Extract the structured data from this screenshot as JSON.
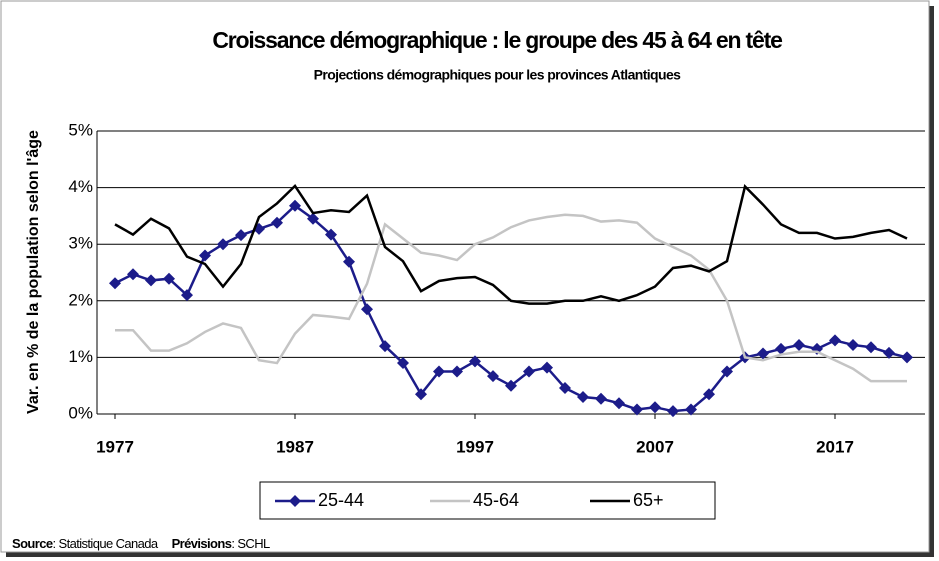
{
  "chart_data": {
    "type": "line",
    "title": "Croissance démographique : le groupe des 45 à 64 en tête",
    "subtitle": "Projections démographiques pour les provinces Atlantiques",
    "y_label": "Var. en % de la population selon l'âge",
    "x": [
      1977,
      1978,
      1979,
      1980,
      1981,
      1982,
      1983,
      1984,
      1985,
      1986,
      1987,
      1988,
      1989,
      1990,
      1991,
      1992,
      1993,
      1994,
      1995,
      1996,
      1997,
      1998,
      1999,
      2000,
      2001,
      2002,
      2003,
      2004,
      2005,
      2006,
      2007,
      2008,
      2009,
      2010,
      2011,
      2012,
      2013,
      2014,
      2015,
      2016,
      2017,
      2018,
      2019,
      2020,
      2021
    ],
    "xlim": [
      1976,
      2022
    ],
    "xticks": [
      1977,
      1987,
      1997,
      2007,
      2017
    ],
    "ylim": [
      0,
      5
    ],
    "yticks": [
      {
        "value": 0,
        "label": "0%"
      },
      {
        "value": 1,
        "label": "1%"
      },
      {
        "value": 2,
        "label": "2%"
      },
      {
        "value": 3,
        "label": "3%"
      },
      {
        "value": 4,
        "label": "4%"
      },
      {
        "value": 5,
        "label": "5%"
      }
    ],
    "grid": true,
    "legend": "bottom",
    "series": [
      {
        "name": "25-44",
        "color": "#1c1c8a",
        "marker": "diamond",
        "values": [
          2.31,
          2.47,
          2.36,
          2.39,
          2.1,
          2.8,
          3.0,
          3.16,
          3.27,
          3.38,
          3.68,
          3.45,
          3.17,
          2.69,
          1.85,
          1.2,
          0.9,
          0.35,
          0.75,
          0.75,
          0.93,
          0.67,
          0.5,
          0.75,
          0.82,
          0.46,
          0.3,
          0.27,
          0.19,
          0.08,
          0.12,
          0.05,
          0.08,
          0.35,
          0.75,
          1.0,
          1.07,
          1.15,
          1.22,
          1.15,
          1.3,
          1.22,
          1.18,
          1.08,
          1.0
        ]
      },
      {
        "name": "45-64",
        "color": "#c4c4c4",
        "values": [
          1.48,
          1.48,
          1.12,
          1.12,
          1.25,
          1.45,
          1.6,
          1.52,
          0.95,
          0.9,
          1.42,
          1.75,
          1.72,
          1.68,
          2.3,
          3.35,
          3.1,
          2.85,
          2.8,
          2.72,
          3.0,
          3.12,
          3.3,
          3.42,
          3.48,
          3.52,
          3.5,
          3.4,
          3.42,
          3.38,
          3.1,
          2.95,
          2.8,
          2.55,
          2.0,
          1.0,
          0.95,
          1.05,
          1.1,
          1.1,
          0.95,
          0.8,
          0.58,
          0.58,
          0.58
        ]
      },
      {
        "name": "65+",
        "color": "#000000",
        "values": [
          3.35,
          3.17,
          3.45,
          3.28,
          2.78,
          2.65,
          2.25,
          2.65,
          3.48,
          3.72,
          4.03,
          3.55,
          3.6,
          3.57,
          3.86,
          2.95,
          2.7,
          2.17,
          2.35,
          2.4,
          2.42,
          2.28,
          2.0,
          1.95,
          1.95,
          2.0,
          2.0,
          2.08,
          2.0,
          2.1,
          2.25,
          2.58,
          2.62,
          2.52,
          2.7,
          4.02,
          3.7,
          3.35,
          3.2,
          3.2,
          3.1,
          3.13,
          3.2,
          3.25,
          3.1
        ]
      }
    ],
    "source_label": "Source",
    "source": ": Statistique Canada",
    "forecast_label": "Prévisions",
    "forecast": ": SCHL"
  }
}
